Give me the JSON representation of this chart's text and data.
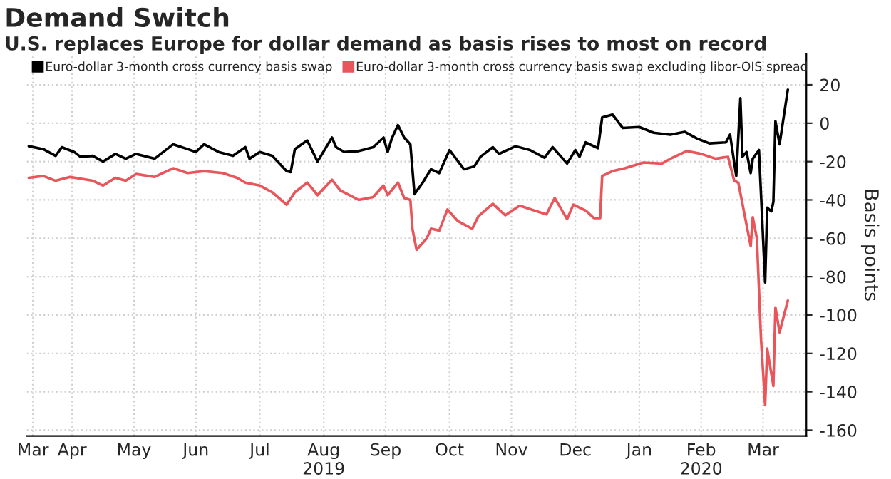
{
  "chart_data": {
    "type": "line",
    "title": "Demand Switch",
    "subtitle": "U.S. replaces Europe for dollar demand as basis rises to most on record",
    "ylabel": "Basis points",
    "xlim": [
      "2019-03-25",
      "2020-04-06"
    ],
    "ylim": [
      -163,
      36
    ],
    "yticks": [
      20,
      0,
      -20,
      -40,
      -60,
      -80,
      -100,
      -120,
      -140,
      -160
    ],
    "xticks": [
      {
        "value": "2019-03-28",
        "label": "Mar"
      },
      {
        "value": "2019-04-16",
        "label": "Apr"
      },
      {
        "value": "2019-05-16",
        "label": "May"
      },
      {
        "value": "2019-06-15",
        "label": "Jun"
      },
      {
        "value": "2019-07-16",
        "label": "Jul"
      },
      {
        "value": "2019-08-16",
        "label": "Aug\n2019"
      },
      {
        "value": "2019-09-15",
        "label": "Sep"
      },
      {
        "value": "2019-10-16",
        "label": "Oct"
      },
      {
        "value": "2019-11-15",
        "label": "Nov"
      },
      {
        "value": "2019-12-16",
        "label": "Dec"
      },
      {
        "value": "2020-01-16",
        "label": "Jan"
      },
      {
        "value": "2020-02-15",
        "label": "Feb\n2020"
      },
      {
        "value": "2020-03-16",
        "label": "Mar"
      }
    ],
    "grid": true,
    "legend": "top left",
    "series": [
      {
        "name": "Euro-dollar 3-month cross currency basis swap",
        "color": "#000000",
        "x": [
          "2019-03-26",
          "2019-04-02",
          "2019-04-08",
          "2019-04-11",
          "2019-04-17",
          "2019-04-20",
          "2019-04-26",
          "2019-05-01",
          "2019-05-07",
          "2019-05-12",
          "2019-05-17",
          "2019-05-26",
          "2019-06-04",
          "2019-06-11",
          "2019-06-15",
          "2019-06-19",
          "2019-06-26",
          "2019-07-03",
          "2019-07-09",
          "2019-07-11",
          "2019-07-16",
          "2019-07-22",
          "2019-07-29",
          "2019-07-31",
          "2019-08-02",
          "2019-08-08",
          "2019-08-13",
          "2019-08-20",
          "2019-08-22",
          "2019-08-26",
          "2019-09-02",
          "2019-09-09",
          "2019-09-14",
          "2019-09-16",
          "2019-09-18",
          "2019-09-21",
          "2019-09-24",
          "2019-09-27",
          "2019-09-29",
          "2019-10-03",
          "2019-10-07",
          "2019-10-11",
          "2019-10-16",
          "2019-10-23",
          "2019-10-28",
          "2019-10-31",
          "2019-11-06",
          "2019-11-09",
          "2019-11-17",
          "2019-11-24",
          "2019-12-01",
          "2019-12-05",
          "2019-12-12",
          "2019-12-16",
          "2019-12-18",
          "2019-12-21",
          "2019-12-27",
          "2019-12-29",
          "2020-01-03",
          "2020-01-08",
          "2020-01-16",
          "2020-01-23",
          "2020-01-31",
          "2020-02-07",
          "2020-02-13",
          "2020-02-19",
          "2020-02-27",
          "2020-02-29",
          "2020-03-03",
          "2020-03-05",
          "2020-03-06",
          "2020-03-08",
          "2020-03-10",
          "2020-03-11",
          "2020-03-14",
          "2020-03-17",
          "2020-03-18",
          "2020-03-20",
          "2020-03-21",
          "2020-03-22",
          "2020-03-24",
          "2020-03-28"
        ],
        "values": [
          -12,
          -13.5,
          -17,
          -12.5,
          -15,
          -17.5,
          -17,
          -20,
          -16,
          -18.5,
          -16,
          -18.5,
          -11,
          -13.5,
          -15,
          -11,
          -15,
          -17,
          -12.5,
          -18.5,
          -15,
          -17,
          -25,
          -25.5,
          -13.5,
          -9,
          -20,
          -7.5,
          -12.5,
          -15,
          -14.5,
          -12.5,
          -7.5,
          -15,
          -8,
          -1,
          -7.5,
          -11,
          -37,
          -31,
          -24,
          -26,
          -14,
          -24,
          -22.5,
          -17.5,
          -12.5,
          -16,
          -12,
          -14,
          -18,
          -12.5,
          -21,
          -14,
          -17.5,
          -10,
          -13,
          3,
          4.5,
          -2.5,
          -2,
          -5,
          -6,
          -4.5,
          -8,
          -10.5,
          -10,
          -6,
          -27.5,
          13,
          -17.5,
          -15,
          -26,
          -18.5,
          -14,
          -83,
          -44,
          -46,
          -41,
          1,
          -11,
          17.5
        ]
      },
      {
        "name": "Euro-dollar 3-month cross currency basis swap excluding libor-OIS spread",
        "color": "#e8555a",
        "x": [
          "2019-03-26",
          "2019-04-02",
          "2019-04-08",
          "2019-04-15",
          "2019-04-26",
          "2019-05-01",
          "2019-05-07",
          "2019-05-12",
          "2019-05-17",
          "2019-05-26",
          "2019-06-04",
          "2019-06-11",
          "2019-06-19",
          "2019-06-28",
          "2019-07-05",
          "2019-07-09",
          "2019-07-16",
          "2019-07-22",
          "2019-07-29",
          "2019-08-02",
          "2019-08-08",
          "2019-08-13",
          "2019-08-20",
          "2019-08-24",
          "2019-09-02",
          "2019-09-09",
          "2019-09-14",
          "2019-09-16",
          "2019-09-21",
          "2019-09-24",
          "2019-09-27",
          "2019-09-28",
          "2019-09-30",
          "2019-10-05",
          "2019-10-07",
          "2019-10-11",
          "2019-10-15",
          "2019-10-20",
          "2019-10-27",
          "2019-10-30",
          "2019-11-06",
          "2019-11-12",
          "2019-11-19",
          "2019-11-26",
          "2019-12-02",
          "2019-12-06",
          "2019-12-12",
          "2019-12-15",
          "2019-12-21",
          "2019-12-25",
          "2019-12-28",
          "2019-12-29",
          "2020-01-03",
          "2020-01-09",
          "2020-01-18",
          "2020-01-27",
          "2020-02-01",
          "2020-02-08",
          "2020-02-15",
          "2020-02-22",
          "2020-02-28",
          "2020-03-02",
          "2020-03-04",
          "2020-03-06",
          "2020-03-10",
          "2020-03-11",
          "2020-03-13",
          "2020-03-15",
          "2020-03-17",
          "2020-03-18",
          "2020-03-21",
          "2020-03-22",
          "2020-03-24",
          "2020-03-28"
        ],
        "values": [
          -28.5,
          -27.5,
          -30,
          -28,
          -30,
          -32.5,
          -28.5,
          -30,
          -26.5,
          -28,
          -23.5,
          -26,
          -25,
          -26,
          -28.5,
          -31,
          -32.5,
          -36,
          -42.5,
          -36,
          -31,
          -37.5,
          -29.5,
          -35,
          -40,
          -38.5,
          -32.5,
          -37.5,
          -31,
          -39,
          -40,
          -55,
          -66,
          -60,
          -55,
          -56,
          -45,
          -51,
          -55,
          -48.5,
          -42,
          -48,
          -43,
          -45.5,
          -47.5,
          -39,
          -50,
          -42.5,
          -45.5,
          -49.5,
          -49.5,
          -27.5,
          -25,
          -23.5,
          -20.5,
          -21,
          -18,
          -14.5,
          -16,
          -18.5,
          -17.5,
          -30,
          -31,
          -42,
          -64,
          -49,
          -60,
          -112.5,
          -147,
          -117.5,
          -137,
          -96,
          -109,
          -92.5
        ]
      }
    ]
  }
}
